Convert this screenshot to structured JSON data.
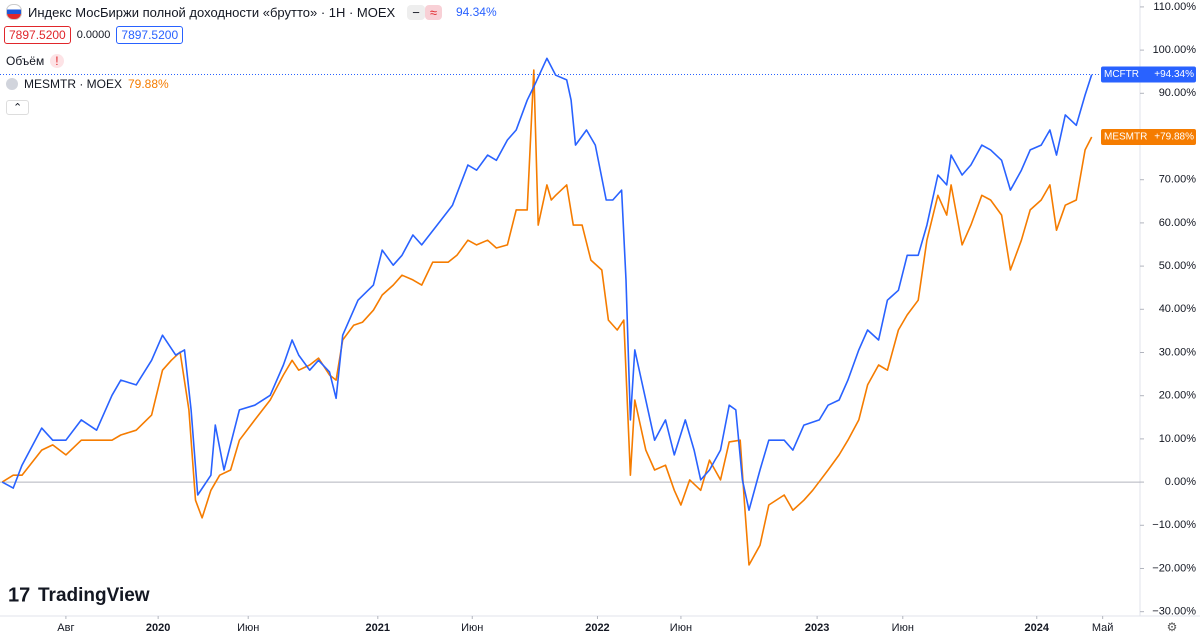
{
  "header": {
    "title": "Индекс МосБиржи полной доходности «брутто» · 1Н · MOEX",
    "change": "94.34%",
    "open": "7897.5200",
    "diff": "0.0000",
    "close": "7897.5200",
    "volume": "Объём",
    "compare": "MESMTR · MOEX",
    "compare_change": "79.88%",
    "logo": "TradingView"
  },
  "chart_data": {
    "type": "line",
    "grid": false,
    "xlim": [
      2019.28,
      2024.47
    ],
    "ylim": [
      -31,
      111.6
    ],
    "xticks": [
      {
        "value": 2019.58,
        "label": "Авг"
      },
      2020,
      {
        "value": 2020.41,
        "label": "Июн"
      },
      2021,
      {
        "value": 2021.43,
        "label": "Июн"
      },
      2022,
      {
        "value": 2022.38,
        "label": "Июн"
      },
      2023,
      {
        "value": 2023.39,
        "label": "Июн"
      },
      2024,
      {
        "value": 2024.3,
        "label": "Май"
      }
    ],
    "yticks": [
      {
        "value": -30,
        "label": "−30.00%"
      },
      {
        "value": -20,
        "label": "−20.00%"
      },
      {
        "value": -10,
        "label": "−10.00%"
      },
      {
        "value": 0,
        "label": "0.00%"
      },
      {
        "value": 10,
        "label": "10.00%"
      },
      {
        "value": 20,
        "label": "20.00%"
      },
      {
        "value": 30,
        "label": "30.00%"
      },
      {
        "value": 40,
        "label": "40.00%"
      },
      {
        "value": 50,
        "label": "50.00%"
      },
      {
        "value": 60,
        "label": "60.00%"
      },
      {
        "value": 70,
        "label": "70.00%"
      },
      {
        "value": 80,
        "label": "80.00%"
      },
      {
        "value": 90,
        "label": "90.00%"
      },
      {
        "value": 100,
        "label": "100.00%"
      },
      {
        "value": 110,
        "label": "110.00%"
      }
    ],
    "series": [
      {
        "name": "MCFTR",
        "color": "#2962ff",
        "end_label": "+94.34%",
        "x": [
          2019.29,
          2019.34,
          2019.38,
          2019.47,
          2019.52,
          2019.58,
          2019.65,
          2019.72,
          2019.79,
          2019.83,
          2019.9,
          2019.97,
          2020.02,
          2020.08,
          2020.12,
          2020.15,
          2020.18,
          2020.24,
          2020.26,
          2020.3,
          2020.37,
          2020.44,
          2020.51,
          2020.57,
          2020.61,
          2020.64,
          2020.69,
          2020.73,
          2020.78,
          2020.81,
          2020.84,
          2020.91,
          2020.98,
          2021.02,
          2021.07,
          2021.11,
          2021.16,
          2021.2,
          2021.27,
          2021.34,
          2021.41,
          2021.45,
          2021.5,
          2021.54,
          2021.59,
          2021.63,
          2021.68,
          2021.72,
          2021.77,
          2021.81,
          2021.86,
          2021.88,
          2021.9,
          2021.95,
          2021.99,
          2022.04,
          2022.07,
          2022.11,
          2022.13,
          2022.15,
          2022.17,
          2022.21,
          2022.26,
          2022.31,
          2022.35,
          2022.4,
          2022.44,
          2022.47,
          2022.51,
          2022.56,
          2022.6,
          2022.63,
          2022.66,
          2022.69,
          2022.74,
          2022.78,
          2022.85,
          2022.89,
          2022.94,
          2023.01,
          2023.05,
          2023.1,
          2023.14,
          2023.19,
          2023.23,
          2023.28,
          2023.32,
          2023.37,
          2023.41,
          2023.46,
          2023.5,
          2023.55,
          2023.59,
          2023.61,
          2023.66,
          2023.7,
          2023.75,
          2023.79,
          2023.84,
          2023.88,
          2023.93,
          2023.97,
          2024.02,
          2024.06,
          2024.09,
          2024.13,
          2024.18,
          2024.22,
          2024.25
        ],
        "values": [
          0.0,
          -1.4,
          3.9,
          12.5,
          9.7,
          9.7,
          14.4,
          12.0,
          20.1,
          23.6,
          22.5,
          28.2,
          34.0,
          29.4,
          30.6,
          16.7,
          -3.0,
          1.6,
          13.2,
          2.8,
          16.7,
          17.8,
          20.1,
          27.1,
          32.9,
          29.4,
          25.9,
          28.2,
          25.5,
          19.4,
          34.0,
          42.1,
          45.6,
          53.7,
          50.2,
          52.5,
          57.2,
          54.9,
          59.5,
          64.1,
          73.4,
          72.2,
          75.7,
          74.5,
          79.2,
          81.5,
          88.4,
          92.6,
          98.1,
          94.2,
          93.1,
          88.4,
          78.0,
          81.5,
          78.0,
          65.3,
          65.3,
          67.6,
          46.8,
          14.4,
          30.6,
          21.3,
          9.7,
          14.4,
          6.3,
          14.4,
          7.4,
          0.5,
          2.8,
          7.4,
          17.8,
          16.7,
          0.5,
          -6.5,
          2.8,
          9.7,
          9.7,
          7.4,
          13.2,
          14.4,
          17.8,
          19.0,
          23.6,
          30.6,
          35.2,
          32.9,
          42.1,
          44.4,
          52.5,
          52.5,
          59.5,
          71.1,
          68.8,
          75.7,
          71.1,
          73.4,
          78.0,
          76.9,
          74.5,
          67.6,
          72.2,
          76.9,
          78.0,
          81.5,
          75.7,
          85.0,
          82.6,
          89.6,
          94.34
        ]
      },
      {
        "name": "MESMTR",
        "color": "#f57c00",
        "end_label": "+79.88%",
        "x": [
          2019.29,
          2019.34,
          2019.38,
          2019.47,
          2019.52,
          2019.58,
          2019.65,
          2019.72,
          2019.79,
          2019.83,
          2019.9,
          2019.97,
          2020.02,
          2020.06,
          2020.1,
          2020.14,
          2020.17,
          2020.2,
          2020.24,
          2020.28,
          2020.33,
          2020.37,
          2020.44,
          2020.51,
          2020.57,
          2020.61,
          2020.64,
          2020.69,
          2020.73,
          2020.78,
          2020.81,
          2020.84,
          2020.89,
          2020.93,
          2020.98,
          2021.02,
          2021.07,
          2021.11,
          2021.16,
          2021.2,
          2021.25,
          2021.32,
          2021.36,
          2021.41,
          2021.45,
          2021.5,
          2021.54,
          2021.59,
          2021.63,
          2021.68,
          2021.71,
          2021.73,
          2021.77,
          2021.79,
          2021.81,
          2021.86,
          2021.89,
          2021.93,
          2021.97,
          2022.02,
          2022.05,
          2022.09,
          2022.12,
          2022.15,
          2022.17,
          2022.22,
          2022.26,
          2022.31,
          2022.35,
          2022.38,
          2022.42,
          2022.47,
          2022.51,
          2022.56,
          2022.6,
          2022.65,
          2022.67,
          2022.69,
          2022.74,
          2022.78,
          2022.85,
          2022.89,
          2022.94,
          2022.98,
          2023.05,
          2023.1,
          2023.14,
          2023.19,
          2023.23,
          2023.28,
          2023.32,
          2023.37,
          2023.41,
          2023.46,
          2023.5,
          2023.55,
          2023.59,
          2023.61,
          2023.66,
          2023.7,
          2023.75,
          2023.79,
          2023.84,
          2023.88,
          2023.93,
          2023.97,
          2024.02,
          2024.06,
          2024.09,
          2024.13,
          2024.18,
          2024.22,
          2024.25
        ],
        "values": [
          0.0,
          1.6,
          1.6,
          7.4,
          8.6,
          6.3,
          9.7,
          9.7,
          9.7,
          10.9,
          12.0,
          15.5,
          25.9,
          28.2,
          30.1,
          16.7,
          -4.2,
          -8.3,
          -1.9,
          1.6,
          2.8,
          9.7,
          14.4,
          19.0,
          24.8,
          28.2,
          25.9,
          27.1,
          28.7,
          24.8,
          23.6,
          32.9,
          36.3,
          37.0,
          39.8,
          43.3,
          45.6,
          47.9,
          46.8,
          45.6,
          50.9,
          50.9,
          52.5,
          56.0,
          54.9,
          56.0,
          54.2,
          54.9,
          63.0,
          63.0,
          95.4,
          59.5,
          68.8,
          65.3,
          66.4,
          68.8,
          59.5,
          59.5,
          51.4,
          49.1,
          37.5,
          35.2,
          37.5,
          1.6,
          19.0,
          7.4,
          2.8,
          3.9,
          -1.9,
          -5.3,
          0.5,
          -1.9,
          5.1,
          0.5,
          9.3,
          9.7,
          -5.3,
          -19.2,
          -14.6,
          -5.3,
          -3.0,
          -6.5,
          -4.2,
          -1.9,
          2.8,
          6.3,
          9.7,
          14.4,
          22.5,
          27.1,
          25.9,
          35.2,
          38.7,
          42.1,
          56.0,
          66.4,
          61.8,
          68.8,
          54.9,
          59.5,
          66.4,
          65.3,
          61.8,
          49.1,
          56.0,
          63.0,
          65.3,
          68.8,
          58.3,
          64.1,
          65.3,
          76.9,
          79.88
        ]
      }
    ]
  }
}
